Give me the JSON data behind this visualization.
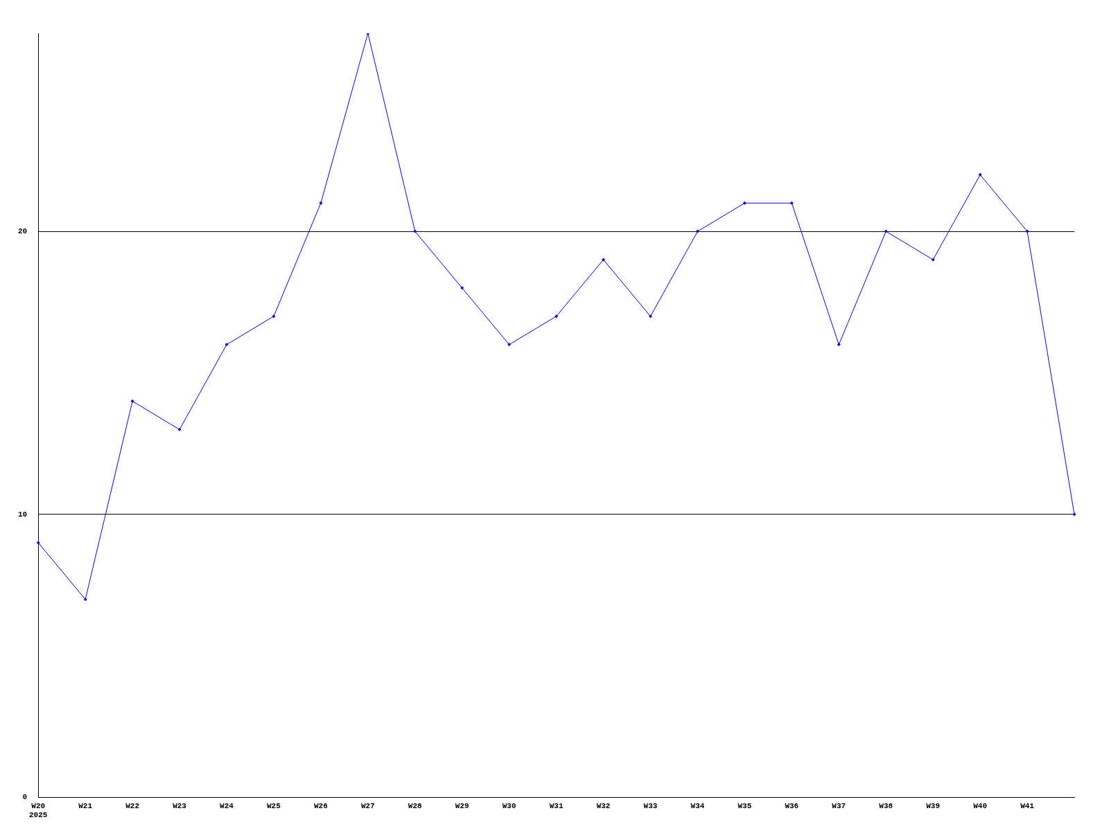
{
  "chart_data": {
    "type": "line",
    "categories": [
      "W20\n2025",
      "W21",
      "W22",
      "W23",
      "W24",
      "W25",
      "W26",
      "W27",
      "W28",
      "W29",
      "W30",
      "W31",
      "W32",
      "W33",
      "W34",
      "W35",
      "W36",
      "W37",
      "W38",
      "W39",
      "W40",
      "W41",
      null
    ],
    "series": [
      {
        "color": "#0000ff",
        "values": [
          9,
          7,
          14,
          13,
          16,
          17,
          21,
          27,
          20,
          18,
          16,
          17,
          19,
          17,
          20,
          21,
          21,
          16,
          20,
          19,
          22,
          20,
          10
        ]
      }
    ],
    "ylim": [
      0,
      27
    ],
    "yticks": [
      0,
      10,
      20
    ],
    "grid": "y",
    "legend": false,
    "marker": "diamond",
    "line_style": "solid"
  }
}
